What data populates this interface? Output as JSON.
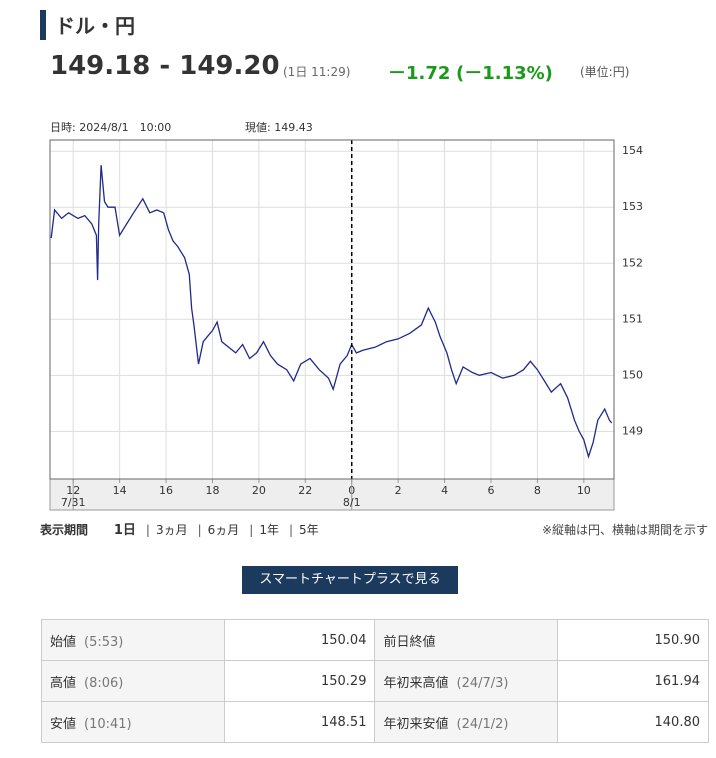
{
  "header": {
    "title": "ドル・円",
    "price": "149.18 - 149.20",
    "time": "(1日 11:29)",
    "change": "－1.72",
    "change_pct": "(－1.13%)",
    "unit": "(単位:円)"
  },
  "chart_data": {
    "type": "line",
    "annotations": {
      "datetime": "日時: 2024/8/1　10:00",
      "current": "現値: 149.43"
    },
    "x": [
      11.05,
      11.2,
      11.5,
      11.8,
      12.2,
      12.5,
      12.8,
      13.0,
      13.05,
      13.1,
      13.2,
      13.35,
      13.5,
      13.8,
      14.0,
      14.3,
      14.6,
      15.0,
      15.3,
      15.6,
      15.9,
      16.1,
      16.3,
      16.5,
      16.8,
      17.0,
      17.1,
      17.2,
      17.4,
      17.6,
      17.8,
      18.0,
      18.2,
      18.4,
      18.7,
      19.0,
      19.3,
      19.6,
      19.9,
      20.2,
      20.5,
      20.8,
      21.2,
      21.5,
      21.8,
      22.2,
      22.6,
      23.0,
      23.2,
      23.5,
      23.8,
      24.0,
      24.2,
      24.5,
      25.0,
      25.5,
      26.0,
      26.5,
      27.0,
      27.3,
      27.6,
      27.8,
      28.1,
      28.3,
      28.5,
      28.8,
      29.2,
      29.5,
      30.0,
      30.5,
      31.0,
      31.4,
      31.7,
      32.0,
      32.3,
      32.6,
      33.0,
      33.3,
      33.6,
      33.8,
      34.0,
      34.2,
      34.4,
      34.6,
      34.9,
      35.1,
      35.2
    ],
    "series": [
      {
        "color": "#1f2a8c",
        "values": [
          152.45,
          152.95,
          152.8,
          152.9,
          152.8,
          152.85,
          152.7,
          152.5,
          151.7,
          152.7,
          153.75,
          153.1,
          153.0,
          153.0,
          152.5,
          152.7,
          152.9,
          153.15,
          152.9,
          152.95,
          152.9,
          152.6,
          152.4,
          152.3,
          152.1,
          151.8,
          151.2,
          150.9,
          150.2,
          150.6,
          150.7,
          150.8,
          150.95,
          150.6,
          150.5,
          150.4,
          150.55,
          150.3,
          150.4,
          150.6,
          150.35,
          150.2,
          150.1,
          149.9,
          150.2,
          150.3,
          150.1,
          149.95,
          149.75,
          150.2,
          150.35,
          150.55,
          150.4,
          150.45,
          150.5,
          150.6,
          150.65,
          150.75,
          150.9,
          151.2,
          150.95,
          150.7,
          150.4,
          150.1,
          149.85,
          150.15,
          150.05,
          150.0,
          150.05,
          149.95,
          150.0,
          150.1,
          150.25,
          150.1,
          149.9,
          149.7,
          149.85,
          149.6,
          149.2,
          149.0,
          148.85,
          148.55,
          148.8,
          149.2,
          149.4,
          149.2,
          149.15
        ]
      }
    ],
    "xlim": [
      11,
      35.3
    ],
    "ylim": [
      148.15,
      154.2
    ],
    "xticks": [
      12,
      14,
      16,
      18,
      20,
      22,
      {
        "value": 24,
        "label": "0"
      },
      {
        "value": 26,
        "label": "2"
      },
      {
        "value": 28,
        "label": "4"
      },
      {
        "value": 30,
        "label": "6"
      },
      {
        "value": 32,
        "label": "8"
      },
      {
        "value": 34,
        "label": "10"
      }
    ],
    "xsublabels": [
      {
        "value": 12,
        "label": "7/31"
      },
      {
        "value": 24,
        "label": "8/1"
      }
    ],
    "date_boundary": 24,
    "yticks": [
      149,
      150,
      151,
      152,
      153,
      154
    ],
    "grid": true
  },
  "period": {
    "label": "表示期間",
    "options": [
      "1日",
      "3ヵ月",
      "6ヵ月",
      "1年",
      "5年"
    ],
    "note": "※縦軸は円、横軸は期間を示す"
  },
  "button": "スマートチャートプラスで見る",
  "table": {
    "rows": [
      {
        "left": {
          "label": "始値",
          "note": "(5:53)",
          "value": "150.04"
        },
        "right": {
          "label": "前日終値",
          "value": "150.90"
        }
      },
      {
        "left": {
          "label": "高値",
          "note": "(8:06)",
          "value": "150.29"
        },
        "right": {
          "label": "年初来高値",
          "note": "(24/7/3)",
          "value": "161.94"
        }
      },
      {
        "left": {
          "label": "安値",
          "note": "(10:41)",
          "value": "148.51"
        },
        "right": {
          "label": "年初来安値",
          "note": "(24/1/2)",
          "value": "140.80"
        }
      }
    ]
  }
}
